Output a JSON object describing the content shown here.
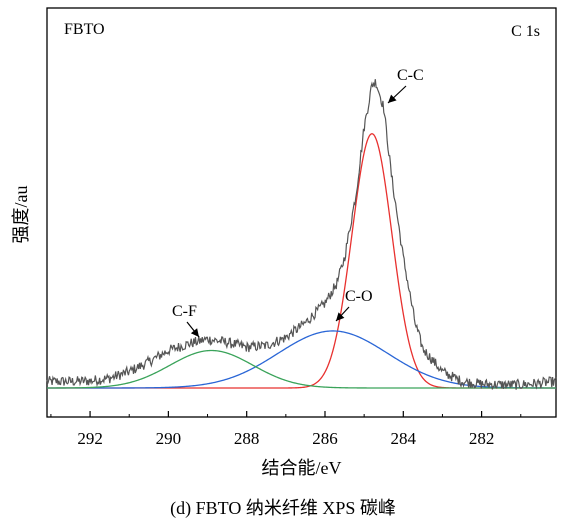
{
  "chart_data": {
    "type": "line",
    "sample_label": "FBTO",
    "region_label": "C 1s",
    "xlabel": "结合能/eV",
    "ylabel": "强度/au",
    "x_reversed": true,
    "xlim": [
      293.1,
      280.1
    ],
    "x_ticks": [
      292,
      290,
      288,
      286,
      284,
      282
    ],
    "x_tick_labels": [
      "292",
      "290",
      "288",
      "286",
      "284",
      "282"
    ],
    "y_ticks_shown": false,
    "ylim": [
      0,
      1.0
    ],
    "series": [
      {
        "color": "#555555",
        "role": "measured"
      },
      {
        "color": "#e8312f",
        "role": "fit"
      },
      {
        "color": "#2a66d6",
        "role": "fit"
      },
      {
        "color": "#3aa35a",
        "role": "fit"
      }
    ],
    "measured": {
      "x": [
        293.1,
        292.5,
        292.0,
        291.5,
        291.0,
        290.5,
        290.0,
        289.5,
        289.0,
        288.5,
        288.0,
        287.5,
        287.0,
        286.5,
        286.0,
        285.7,
        285.5,
        285.2,
        285.0,
        284.8,
        284.7,
        284.5,
        284.3,
        284.0,
        283.7,
        283.5,
        283.0,
        282.5,
        282.0,
        281.5,
        281.0,
        280.5,
        280.1
      ],
      "y": [
        0.02,
        0.02,
        0.022,
        0.03,
        0.05,
        0.08,
        0.115,
        0.135,
        0.15,
        0.14,
        0.125,
        0.13,
        0.155,
        0.2,
        0.26,
        0.32,
        0.4,
        0.6,
        0.8,
        0.93,
        0.94,
        0.86,
        0.65,
        0.4,
        0.2,
        0.12,
        0.05,
        0.02,
        0.012,
        0.01,
        0.01,
        0.015,
        0.02
      ]
    },
    "peaks": [
      {
        "label": "C-C",
        "center": 284.8,
        "height": 0.78,
        "fwhm": 1.2,
        "color": "#e8312f"
      },
      {
        "label": "C-O",
        "center": 285.8,
        "height": 0.175,
        "fwhm": 3.3,
        "color": "#2a66d6"
      },
      {
        "label": "C-F",
        "center": 288.9,
        "height": 0.115,
        "fwhm": 2.5,
        "color": "#3aa35a"
      }
    ]
  },
  "caption": "(d) FBTO 纳米纤维 XPS 碳峰"
}
